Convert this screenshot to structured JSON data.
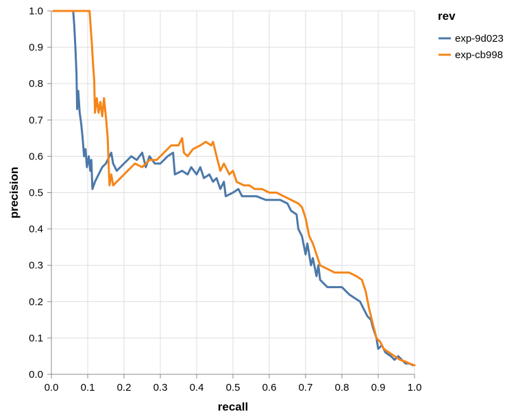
{
  "chart_data": {
    "type": "line",
    "title": "",
    "xlabel": "recall",
    "ylabel": "precision",
    "xlim": [
      0,
      1
    ],
    "ylim": [
      0,
      1
    ],
    "grid": true,
    "legend_position": "top-right",
    "legend_title": "rev",
    "x_ticks": [
      "0.0",
      "0.1",
      "0.2",
      "0.3",
      "0.4",
      "0.5",
      "0.6",
      "0.7",
      "0.8",
      "0.9",
      "1.0"
    ],
    "y_ticks": [
      "0.0",
      "0.1",
      "0.2",
      "0.3",
      "0.4",
      "0.5",
      "0.6",
      "0.7",
      "0.8",
      "0.9",
      "1.0"
    ],
    "series": [
      {
        "name": "exp-9d023",
        "color": "#4c78a8",
        "points": [
          [
            0.005,
            1.0
          ],
          [
            0.06,
            1.0
          ],
          [
            0.063,
            0.96
          ],
          [
            0.066,
            0.9
          ],
          [
            0.069,
            0.83
          ],
          [
            0.071,
            0.73
          ],
          [
            0.074,
            0.78
          ],
          [
            0.078,
            0.72
          ],
          [
            0.082,
            0.69
          ],
          [
            0.086,
            0.65
          ],
          [
            0.09,
            0.6
          ],
          [
            0.094,
            0.62
          ],
          [
            0.098,
            0.57
          ],
          [
            0.103,
            0.6
          ],
          [
            0.107,
            0.56
          ],
          [
            0.11,
            0.59
          ],
          [
            0.113,
            0.51
          ],
          [
            0.12,
            0.53
          ],
          [
            0.13,
            0.55
          ],
          [
            0.14,
            0.57
          ],
          [
            0.15,
            0.58
          ],
          [
            0.16,
            0.6
          ],
          [
            0.165,
            0.61
          ],
          [
            0.17,
            0.58
          ],
          [
            0.18,
            0.56
          ],
          [
            0.2,
            0.58
          ],
          [
            0.22,
            0.6
          ],
          [
            0.235,
            0.59
          ],
          [
            0.25,
            0.61
          ],
          [
            0.26,
            0.57
          ],
          [
            0.27,
            0.6
          ],
          [
            0.285,
            0.58
          ],
          [
            0.3,
            0.58
          ],
          [
            0.32,
            0.6
          ],
          [
            0.335,
            0.61
          ],
          [
            0.34,
            0.55
          ],
          [
            0.36,
            0.56
          ],
          [
            0.375,
            0.55
          ],
          [
            0.385,
            0.57
          ],
          [
            0.4,
            0.55
          ],
          [
            0.41,
            0.57
          ],
          [
            0.42,
            0.54
          ],
          [
            0.435,
            0.55
          ],
          [
            0.445,
            0.53
          ],
          [
            0.455,
            0.54
          ],
          [
            0.465,
            0.51
          ],
          [
            0.475,
            0.53
          ],
          [
            0.48,
            0.49
          ],
          [
            0.5,
            0.5
          ],
          [
            0.515,
            0.51
          ],
          [
            0.525,
            0.49
          ],
          [
            0.545,
            0.49
          ],
          [
            0.565,
            0.49
          ],
          [
            0.59,
            0.48
          ],
          [
            0.61,
            0.48
          ],
          [
            0.63,
            0.48
          ],
          [
            0.65,
            0.47
          ],
          [
            0.66,
            0.45
          ],
          [
            0.675,
            0.44
          ],
          [
            0.68,
            0.4
          ],
          [
            0.69,
            0.38
          ],
          [
            0.7,
            0.33
          ],
          [
            0.705,
            0.36
          ],
          [
            0.715,
            0.3
          ],
          [
            0.72,
            0.32
          ],
          [
            0.73,
            0.27
          ],
          [
            0.735,
            0.3
          ],
          [
            0.74,
            0.26
          ],
          [
            0.75,
            0.25
          ],
          [
            0.76,
            0.24
          ],
          [
            0.78,
            0.24
          ],
          [
            0.8,
            0.24
          ],
          [
            0.81,
            0.23
          ],
          [
            0.82,
            0.22
          ],
          [
            0.835,
            0.21
          ],
          [
            0.85,
            0.2
          ],
          [
            0.86,
            0.18
          ],
          [
            0.87,
            0.16
          ],
          [
            0.88,
            0.15
          ],
          [
            0.885,
            0.13
          ],
          [
            0.895,
            0.1
          ],
          [
            0.9,
            0.07
          ],
          [
            0.91,
            0.08
          ],
          [
            0.92,
            0.06
          ],
          [
            0.935,
            0.05
          ],
          [
            0.945,
            0.04
          ],
          [
            0.955,
            0.05
          ],
          [
            0.965,
            0.04
          ],
          [
            0.975,
            0.03
          ],
          [
            0.985,
            0.03
          ],
          [
            0.995,
            0.025
          ]
        ]
      },
      {
        "name": "exp-cb998",
        "color": "#f58518",
        "points": [
          [
            0.005,
            1.0
          ],
          [
            0.105,
            1.0
          ],
          [
            0.108,
            0.96
          ],
          [
            0.112,
            0.9
          ],
          [
            0.115,
            0.85
          ],
          [
            0.118,
            0.81
          ],
          [
            0.12,
            0.72
          ],
          [
            0.125,
            0.76
          ],
          [
            0.13,
            0.72
          ],
          [
            0.135,
            0.75
          ],
          [
            0.14,
            0.71
          ],
          [
            0.145,
            0.76
          ],
          [
            0.15,
            0.71
          ],
          [
            0.155,
            0.65
          ],
          [
            0.158,
            0.57
          ],
          [
            0.16,
            0.52
          ],
          [
            0.165,
            0.55
          ],
          [
            0.17,
            0.52
          ],
          [
            0.19,
            0.54
          ],
          [
            0.21,
            0.56
          ],
          [
            0.23,
            0.58
          ],
          [
            0.25,
            0.57
          ],
          [
            0.27,
            0.59
          ],
          [
            0.29,
            0.59
          ],
          [
            0.31,
            0.61
          ],
          [
            0.33,
            0.63
          ],
          [
            0.35,
            0.63
          ],
          [
            0.36,
            0.65
          ],
          [
            0.365,
            0.61
          ],
          [
            0.375,
            0.6
          ],
          [
            0.39,
            0.62
          ],
          [
            0.41,
            0.63
          ],
          [
            0.425,
            0.64
          ],
          [
            0.44,
            0.63
          ],
          [
            0.445,
            0.64
          ],
          [
            0.455,
            0.6
          ],
          [
            0.465,
            0.56
          ],
          [
            0.475,
            0.58
          ],
          [
            0.49,
            0.55
          ],
          [
            0.5,
            0.56
          ],
          [
            0.51,
            0.53
          ],
          [
            0.53,
            0.52
          ],
          [
            0.545,
            0.52
          ],
          [
            0.56,
            0.51
          ],
          [
            0.58,
            0.51
          ],
          [
            0.6,
            0.5
          ],
          [
            0.62,
            0.5
          ],
          [
            0.64,
            0.49
          ],
          [
            0.66,
            0.48
          ],
          [
            0.68,
            0.47
          ],
          [
            0.69,
            0.46
          ],
          [
            0.7,
            0.43
          ],
          [
            0.71,
            0.38
          ],
          [
            0.72,
            0.36
          ],
          [
            0.73,
            0.33
          ],
          [
            0.74,
            0.3
          ],
          [
            0.76,
            0.29
          ],
          [
            0.78,
            0.28
          ],
          [
            0.8,
            0.28
          ],
          [
            0.82,
            0.28
          ],
          [
            0.84,
            0.27
          ],
          [
            0.855,
            0.26
          ],
          [
            0.865,
            0.23
          ],
          [
            0.875,
            0.18
          ],
          [
            0.885,
            0.14
          ],
          [
            0.895,
            0.1
          ],
          [
            0.905,
            0.09
          ],
          [
            0.915,
            0.07
          ],
          [
            0.93,
            0.06
          ],
          [
            0.945,
            0.05
          ],
          [
            0.96,
            0.04
          ],
          [
            0.975,
            0.035
          ],
          [
            0.99,
            0.028
          ],
          [
            1.0,
            0.025
          ]
        ]
      }
    ]
  }
}
